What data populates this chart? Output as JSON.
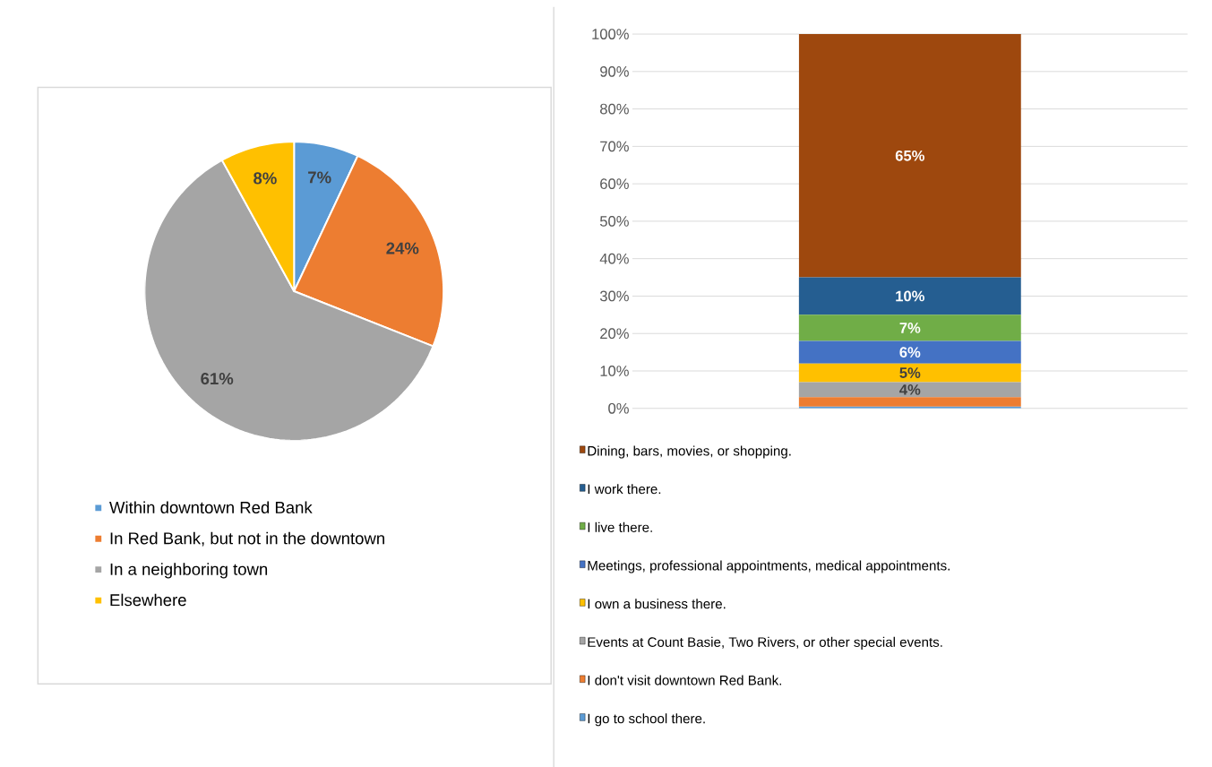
{
  "chart_data": [
    {
      "type": "pie",
      "categories": [
        "Within downtown Red Bank",
        "In Red Bank, but not in the downtown",
        "In a neighboring town",
        "Elsewhere"
      ],
      "values": [
        7,
        24,
        61,
        8
      ],
      "colors": [
        "#5b9bd5",
        "#ed7d31",
        "#a5a5a5",
        "#ffc000"
      ],
      "value_labels": [
        "7%",
        "24%",
        "61%",
        "8%"
      ],
      "legend": "bottom"
    },
    {
      "type": "bar",
      "stacked": true,
      "categories": [
        null
      ],
      "ylim": [
        0,
        100
      ],
      "yticks": [
        {
          "value": 0,
          "label": "0%"
        },
        {
          "value": 10,
          "label": "10%"
        },
        {
          "value": 20,
          "label": "20%"
        },
        {
          "value": 30,
          "label": "30%"
        },
        {
          "value": 40,
          "label": "40%"
        },
        {
          "value": 50,
          "label": "50%"
        },
        {
          "value": 60,
          "label": "60%"
        },
        {
          "value": 70,
          "label": "70%"
        },
        {
          "value": 80,
          "label": "80%"
        },
        {
          "value": 90,
          "label": "90%"
        },
        {
          "value": 100,
          "label": "100%"
        }
      ],
      "grid": "y",
      "legend": "bottom",
      "series": [
        {
          "name": "I go to school there.",
          "color": "#5b9bd5",
          "values": [
            0.5
          ],
          "value_labels": [
            null
          ]
        },
        {
          "name": "I don't visit downtown Red Bank.",
          "color": "#ed7d31",
          "values": [
            2.5
          ],
          "value_labels": [
            null
          ]
        },
        {
          "name": "Events at Count Basie, Two Rivers, or other special events.",
          "color": "#a5a5a5",
          "values": [
            4
          ],
          "value_labels": [
            "4%"
          ]
        },
        {
          "name": "I own a business there.",
          "color": "#ffc000",
          "values": [
            5
          ],
          "value_labels": [
            "5%"
          ]
        },
        {
          "name": "Meetings, professional appointments, medical appointments.",
          "color": "#4472c4",
          "values": [
            6
          ],
          "value_labels": [
            "6%"
          ]
        },
        {
          "name": "I live there.",
          "color": "#70ad47",
          "values": [
            7
          ],
          "value_labels": [
            "7%"
          ]
        },
        {
          "name": "I work there.",
          "color": "#255e91",
          "values": [
            10
          ],
          "value_labels": [
            "10%"
          ]
        },
        {
          "name": "Dining, bars, movies, or shopping.",
          "color": "#9e480e",
          "values": [
            65
          ],
          "value_labels": [
            "65%"
          ]
        }
      ]
    }
  ]
}
